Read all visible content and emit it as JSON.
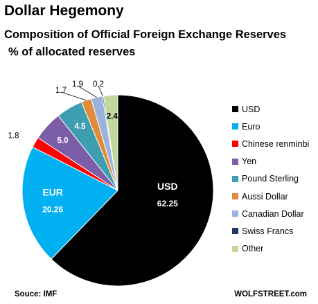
{
  "header": {
    "title": "Dollar Hegemony",
    "subtitle": "Composition of Official Foreign Exchange Reserves",
    "unit": "% of allocated reserves"
  },
  "footer": {
    "source": "Souce: IMF",
    "credit": "WOLFSTREET.com"
  },
  "chart_data": {
    "type": "pie",
    "title": "Dollar Hegemony",
    "subtitle": "Composition of Official Foreign Exchange Reserves",
    "unit": "% of allocated reserves",
    "start": "12 o'clock, clockwise",
    "legend_position": "right",
    "slices": [
      {
        "name": "USD",
        "value": 62.25,
        "color": "#000000",
        "label": "USD",
        "value_label": "62.25"
      },
      {
        "name": "Euro",
        "value": 20.26,
        "color": "#00b0f0",
        "label": "EUR",
        "value_label": "20.26"
      },
      {
        "name": "Chinese renminbi",
        "value": 1.8,
        "color": "#ff0000",
        "value_label": "1.8"
      },
      {
        "name": "Yen",
        "value": 5.0,
        "color": "#7b5ea7",
        "value_label": "5.0"
      },
      {
        "name": "Pound Sterling",
        "value": 4.5,
        "color": "#3d9eb0",
        "value_label": "4.5"
      },
      {
        "name": "Aussi Dollar",
        "value": 1.7,
        "color": "#e08a3c",
        "value_label": "1.7"
      },
      {
        "name": "Canadian Dollar",
        "value": 1.9,
        "color": "#99b3dc",
        "value_label": "1.9"
      },
      {
        "name": "Swiss Francs",
        "value": 0.2,
        "color": "#1f3864",
        "value_label": "0.2"
      },
      {
        "name": "Other",
        "value": 2.4,
        "color": "#c3d69b",
        "value_label": "2.4"
      }
    ]
  }
}
